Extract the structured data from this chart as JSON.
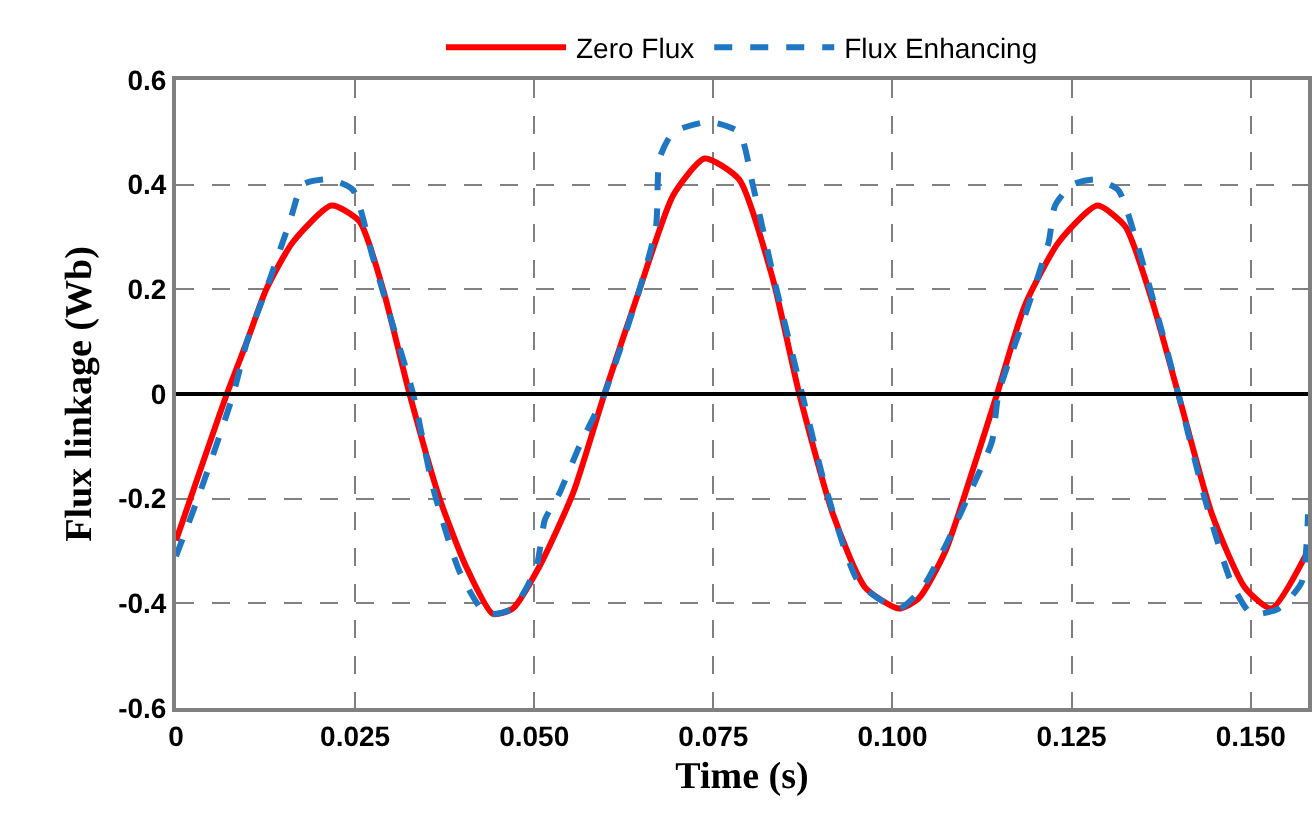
{
  "chart_data": {
    "type": "line",
    "xlabel": "Time (s)",
    "ylabel": "Flux linkage (Wb)",
    "xlim": [
      0,
      0.158
    ],
    "xticks": [
      0,
      {
        "value": 0.025,
        "label": "0.025"
      },
      {
        "value": 0.05,
        "label": "0.050"
      },
      {
        "value": 0.075,
        "label": "0.075"
      },
      {
        "value": 0.1,
        "label": "0.100"
      },
      {
        "value": 0.125,
        "label": "0.125"
      },
      {
        "value": 0.15,
        "label": "0.150"
      }
    ],
    "ylim": [
      -0.6,
      0.6
    ],
    "yticks": [
      -0.6,
      -0.4,
      -0.2,
      0,
      0.2,
      0.4,
      0.6
    ],
    "grid": true,
    "legend": "top",
    "ref_lines": [
      {
        "axis": "y",
        "value": 0,
        "color": "#000000"
      }
    ],
    "series": [
      {
        "name": "Zero Flux",
        "color": "#ff0000",
        "line_style": "solid",
        "x": [
          0.0,
          0.0071,
          0.0099,
          0.0126,
          0.0163,
          0.0217,
          0.0256,
          0.0289,
          0.0326,
          0.0368,
          0.0405,
          0.0442,
          0.047,
          0.0507,
          0.0554,
          0.0598,
          0.0647,
          0.0694,
          0.0738,
          0.0786,
          0.0833,
          0.087,
          0.0917,
          0.0962,
          0.1009,
          0.1037,
          0.1074,
          0.1111,
          0.1146,
          0.1185,
          0.1232,
          0.1286,
          0.1325,
          0.1362,
          0.1399,
          0.1446,
          0.1492,
          0.1529,
          0.158
        ],
        "values": [
          -0.28,
          0,
          0.1,
          0.2,
          0.29,
          0.36,
          0.33,
          0.2,
          0,
          -0.2,
          -0.33,
          -0.42,
          -0.41,
          -0.33,
          -0.19,
          0,
          0.2,
          0.38,
          0.45,
          0.41,
          0.22,
          0,
          -0.23,
          -0.37,
          -0.41,
          -0.39,
          -0.3,
          -0.15,
          0,
          0.17,
          0.29,
          0.36,
          0.32,
          0.18,
          0,
          -0.23,
          -0.37,
          -0.41,
          -0.3
        ]
      },
      {
        "name": "Flux Enhancing",
        "color": "#1f77c4",
        "line_style": "dashed",
        "x": [
          0.0,
          0.0033,
          0.008,
          0.0099,
          0.0126,
          0.0159,
          0.0177,
          0.0214,
          0.0247,
          0.0275,
          0.0303,
          0.0331,
          0.0359,
          0.0396,
          0.0433,
          0.047,
          0.0503,
          0.0515,
          0.0535,
          0.0563,
          0.0598,
          0.0647,
          0.067,
          0.0675,
          0.0694,
          0.0744,
          0.0786,
          0.0805,
          0.0833,
          0.0874,
          0.0907,
          0.0953,
          0.1009,
          0.1042,
          0.1074,
          0.1111,
          0.1139,
          0.1148,
          0.1185,
          0.1218,
          0.1227,
          0.1251,
          0.1283,
          0.1315,
          0.1343,
          0.138,
          0.1399,
          0.1436,
          0.1473,
          0.1501,
          0.1539,
          0.1571,
          0.158
        ],
        "values": [
          -0.31,
          -0.19,
          0,
          0.1,
          0.2,
          0.33,
          0.4,
          0.41,
          0.39,
          0.26,
          0.13,
          0,
          -0.18,
          -0.34,
          -0.42,
          -0.41,
          -0.33,
          -0.24,
          -0.19,
          -0.1,
          0,
          0.2,
          0.32,
          0.45,
          0.5,
          0.52,
          0.5,
          0.4,
          0.23,
          0,
          -0.18,
          -0.36,
          -0.41,
          -0.37,
          -0.29,
          -0.18,
          -0.09,
          0,
          0.15,
          0.29,
          0.36,
          0.4,
          0.41,
          0.39,
          0.28,
          0.1,
          0,
          -0.2,
          -0.36,
          -0.42,
          -0.41,
          -0.36,
          -0.23
        ]
      }
    ]
  }
}
